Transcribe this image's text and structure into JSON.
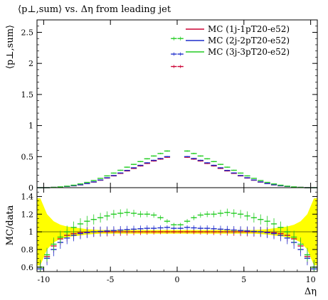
{
  "chart_data": [
    {
      "type": "scatter",
      "title": "⟨p⊥,sum⟩ vs. Δη from leading jet",
      "xlabel": "",
      "ylabel": "⟨p⊥,sum⟩",
      "xlim": [
        -10.5,
        10.5
      ],
      "ylim": [
        0,
        2.7
      ],
      "xticks": [
        -10,
        -5,
        0,
        5,
        10
      ],
      "yticks": [
        0,
        0.5,
        1,
        1.5,
        2,
        2.5
      ],
      "ytick_labels": [
        "0",
        "0.5",
        "1",
        "1.5",
        "2",
        "2.5"
      ],
      "legend_position": "top-right",
      "x": [
        -10.25,
        -9.75,
        -9.25,
        -8.75,
        -8.25,
        -7.75,
        -7.25,
        -6.75,
        -6.25,
        -5.75,
        -5.25,
        -4.75,
        -4.25,
        -3.75,
        -3.25,
        -2.75,
        -2.25,
        -1.75,
        -1.25,
        -0.75,
        -0.25,
        0.25,
        0.75,
        1.25,
        1.75,
        2.25,
        2.75,
        3.25,
        3.75,
        4.25,
        4.75,
        5.25,
        5.75,
        6.25,
        6.75,
        7.25,
        7.75,
        8.25,
        8.75,
        9.25,
        9.75,
        10.25
      ],
      "series": [
        {
          "name": "MC (1j-1pT20-e52)",
          "color": "#cc0033",
          "values": [
            0.0,
            0.0,
            0.005,
            0.01,
            0.02,
            0.03,
            0.045,
            0.065,
            0.09,
            0.12,
            0.155,
            0.19,
            0.23,
            0.27,
            0.31,
            0.35,
            0.39,
            0.43,
            0.46,
            0.49,
            1.95,
            1.95,
            0.49,
            0.46,
            0.43,
            0.39,
            0.35,
            0.31,
            0.27,
            0.23,
            0.19,
            0.155,
            0.12,
            0.09,
            0.065,
            0.045,
            0.03,
            0.02,
            0.01,
            0.005,
            0.0,
            0.0
          ]
        },
        {
          "name": "MC (2j-2pT20-e52)",
          "color": "#1f2ecc",
          "values": [
            0.0,
            0.0,
            0.005,
            0.01,
            0.02,
            0.032,
            0.047,
            0.067,
            0.093,
            0.124,
            0.16,
            0.196,
            0.237,
            0.278,
            0.32,
            0.36,
            0.4,
            0.44,
            0.47,
            0.5,
            2.15,
            2.15,
            0.5,
            0.47,
            0.44,
            0.4,
            0.36,
            0.32,
            0.278,
            0.237,
            0.196,
            0.16,
            0.124,
            0.093,
            0.067,
            0.047,
            0.032,
            0.02,
            0.01,
            0.005,
            0.0,
            0.0
          ]
        },
        {
          "name": "MC (3j-3pT20-e52)",
          "color": "#22cc22",
          "values": [
            0.0,
            0.0,
            0.005,
            0.012,
            0.024,
            0.04,
            0.06,
            0.085,
            0.115,
            0.15,
            0.19,
            0.235,
            0.28,
            0.33,
            0.375,
            0.42,
            0.465,
            0.51,
            0.55,
            0.59,
            2.4,
            2.4,
            0.59,
            0.55,
            0.51,
            0.465,
            0.42,
            0.375,
            0.33,
            0.28,
            0.235,
            0.19,
            0.15,
            0.115,
            0.085,
            0.06,
            0.04,
            0.024,
            0.012,
            0.005,
            0.0,
            0.0
          ]
        }
      ]
    },
    {
      "type": "scatter",
      "xlabel": "Δη",
      "ylabel": "MC/data",
      "xlim": [
        -10.5,
        10.5
      ],
      "ylim": [
        0.55,
        1.5
      ],
      "xticks": [
        -10,
        -5,
        0,
        5,
        10
      ],
      "xtick_labels": [
        "-10",
        "-5",
        "0",
        "5",
        "10"
      ],
      "yticks": [
        0.6,
        0.8,
        1,
        1.2,
        1.4
      ],
      "ytick_labels": [
        "0.6",
        "0.8",
        "1",
        "1.2",
        "1.4"
      ],
      "reference_line": 1.0,
      "reference_color": "#999900",
      "data_band_color": "#ffff00",
      "x": [
        -10.25,
        -9.75,
        -9.25,
        -8.75,
        -8.25,
        -7.75,
        -7.25,
        -6.75,
        -6.25,
        -5.75,
        -5.25,
        -4.75,
        -4.25,
        -3.75,
        -3.25,
        -2.75,
        -2.25,
        -1.75,
        -1.25,
        -0.75,
        -0.25,
        0.25,
        0.75,
        1.25,
        1.75,
        2.25,
        2.75,
        3.25,
        3.75,
        4.25,
        4.75,
        5.25,
        5.75,
        6.25,
        6.75,
        7.25,
        7.75,
        8.25,
        8.75,
        9.25,
        9.75,
        10.25
      ],
      "data_band": [
        0.38,
        0.2,
        0.12,
        0.08,
        0.06,
        0.05,
        0.04,
        0.03,
        0.025,
        0.02,
        0.02,
        0.02,
        0.02,
        0.02,
        0.02,
        0.02,
        0.02,
        0.02,
        0.02,
        0.02,
        0.02,
        0.02,
        0.02,
        0.02,
        0.02,
        0.02,
        0.02,
        0.02,
        0.02,
        0.02,
        0.02,
        0.02,
        0.02,
        0.025,
        0.03,
        0.04,
        0.05,
        0.06,
        0.08,
        0.12,
        0.2,
        0.38
      ],
      "series": [
        {
          "name": "MC (1j-1pT20-e52)",
          "color": "#cc0033",
          "values": [
            0.6,
            0.72,
            0.84,
            0.92,
            0.96,
            0.98,
            0.99,
            0.995,
            1.0,
            1.0,
            1.0,
            1.0,
            1.0,
            1.0,
            1.0,
            1.0,
            1.0,
            1.0,
            1.0,
            1.0,
            1.0,
            1.0,
            1.0,
            1.0,
            1.0,
            1.0,
            1.0,
            1.0,
            1.0,
            1.0,
            1.0,
            1.0,
            1.0,
            1.0,
            0.995,
            0.99,
            0.98,
            0.96,
            0.92,
            0.84,
            0.72,
            0.6
          ]
        },
        {
          "name": "MC (2j-2pT20-e52)",
          "color": "#1f2ecc",
          "values": [
            0.58,
            0.7,
            0.8,
            0.88,
            0.93,
            0.96,
            0.98,
            0.99,
            1.0,
            1.005,
            1.01,
            1.015,
            1.02,
            1.025,
            1.03,
            1.035,
            1.04,
            1.04,
            1.045,
            1.05,
            1.04,
            1.04,
            1.05,
            1.045,
            1.04,
            1.04,
            1.035,
            1.03,
            1.025,
            1.02,
            1.015,
            1.01,
            1.005,
            1.0,
            0.99,
            0.98,
            0.96,
            0.93,
            0.88,
            0.8,
            0.7,
            0.58
          ]
        },
        {
          "name": "MC (3j-3pT20-e52)",
          "color": "#22cc22",
          "values": [
            0.6,
            0.74,
            0.86,
            0.94,
            1.0,
            1.05,
            1.09,
            1.12,
            1.14,
            1.16,
            1.18,
            1.2,
            1.21,
            1.22,
            1.21,
            1.2,
            1.2,
            1.19,
            1.16,
            1.12,
            1.08,
            1.08,
            1.12,
            1.16,
            1.19,
            1.2,
            1.2,
            1.21,
            1.22,
            1.21,
            1.2,
            1.18,
            1.16,
            1.14,
            1.12,
            1.09,
            1.05,
            1.0,
            0.94,
            0.86,
            0.74,
            0.6
          ]
        }
      ]
    }
  ]
}
